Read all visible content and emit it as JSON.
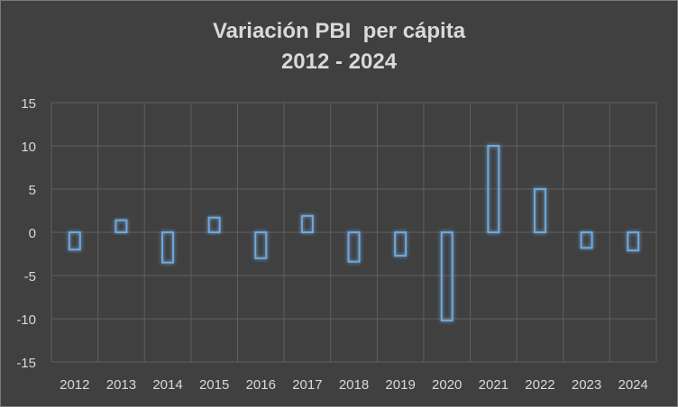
{
  "chart_data": {
    "type": "bar",
    "title_lines": [
      "Variación PBI  per cápita",
      "2012 - 2024"
    ],
    "categories": [
      "2012",
      "2013",
      "2014",
      "2015",
      "2016",
      "2017",
      "2018",
      "2019",
      "2020",
      "2021",
      "2022",
      "2023",
      "2024"
    ],
    "values": [
      -2.0,
      1.4,
      -3.5,
      1.7,
      -3.0,
      1.9,
      -3.4,
      -2.7,
      -10.2,
      10.0,
      5.0,
      -1.8,
      -2.1
    ],
    "ylim": [
      -15,
      15
    ],
    "yticks": [
      15,
      10,
      5,
      0,
      -5,
      -10,
      -15
    ],
    "grid": true,
    "legend": "none",
    "colors": {
      "background": "#404040",
      "grid": "#5f5f5f",
      "bar_outline": "#6fa8dc",
      "bar_glow": "#4f81bd",
      "text": "#d9d9d9"
    }
  }
}
